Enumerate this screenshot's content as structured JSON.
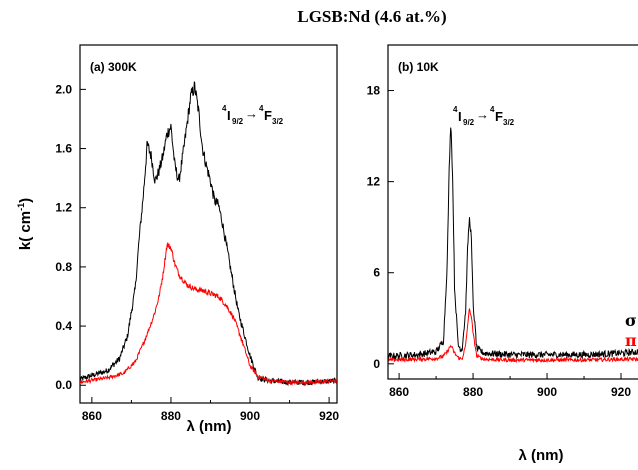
{
  "figure": {
    "title": "LGSB:Nd (4.6 at.%)"
  },
  "colors": {
    "sigma": "#000000",
    "pi": "#ff0000",
    "frame": "#000000"
  },
  "chart_data": [
    {
      "type": "line",
      "panel_label": "(a) 300K",
      "transition": {
        "lower": "4I9/2",
        "upper": "4F3/2"
      },
      "xlabel": "λ (nm)",
      "ylabel": "k( cm-1)",
      "xlim": [
        857,
        922
      ],
      "ylim": [
        -0.12,
        2.3
      ],
      "xticks": [
        860,
        880,
        900,
        920
      ],
      "xtick_labels": [
        "860",
        "880",
        "900",
        "920"
      ],
      "yticks": [
        0.0,
        0.4,
        0.8,
        1.2,
        1.6,
        2.0
      ],
      "ytick_labels": [
        "0.0",
        "0.4",
        "0.8",
        "1.2",
        "1.6",
        "2.0"
      ],
      "grid": false,
      "series": [
        {
          "color": "#000000",
          "x": [
            857,
            864,
            867,
            869,
            871,
            872,
            873,
            874,
            875,
            876,
            877,
            878,
            879,
            880,
            881,
            882,
            883,
            884,
            885,
            886,
            887,
            888,
            889,
            890,
            891,
            892,
            893,
            894,
            895,
            896,
            897,
            898,
            900,
            902,
            905,
            910,
            915,
            922
          ],
          "y": [
            0.04,
            0.1,
            0.18,
            0.33,
            0.66,
            1.0,
            1.28,
            1.63,
            1.55,
            1.38,
            1.45,
            1.55,
            1.7,
            1.75,
            1.48,
            1.38,
            1.55,
            1.75,
            1.95,
            2.02,
            1.85,
            1.6,
            1.48,
            1.38,
            1.25,
            1.22,
            1.1,
            0.95,
            0.8,
            0.65,
            0.5,
            0.4,
            0.2,
            0.05,
            0.03,
            0.02,
            0.02,
            0.03
          ]
        },
        {
          "color": "#ff0000",
          "x": [
            857,
            864,
            868,
            871,
            873,
            875,
            876,
            877,
            878,
            879,
            880,
            881,
            882,
            884,
            886,
            888,
            890,
            892,
            894,
            896,
            898,
            900,
            902,
            905,
            910,
            915,
            922
          ],
          "y": [
            0.02,
            0.05,
            0.08,
            0.16,
            0.28,
            0.42,
            0.5,
            0.6,
            0.75,
            0.95,
            0.93,
            0.82,
            0.75,
            0.68,
            0.65,
            0.64,
            0.62,
            0.6,
            0.54,
            0.45,
            0.3,
            0.13,
            0.06,
            0.03,
            0.02,
            0.02,
            0.03
          ]
        }
      ]
    },
    {
      "type": "line",
      "panel_label": "(b) 10K",
      "transition": {
        "lower": "4I9/2",
        "upper": "4F3/2"
      },
      "xlabel": "λ (nm)",
      "xlim": [
        857,
        930
      ],
      "ylim": [
        -1,
        21
      ],
      "xticks": [
        860,
        880,
        900,
        920
      ],
      "xtick_labels": [
        "860",
        "880",
        "900",
        "920"
      ],
      "yticks": [
        0,
        6,
        12,
        18
      ],
      "ytick_labels": [
        "0",
        "6",
        "12",
        "18"
      ],
      "grid": false,
      "legend": [
        "σ",
        "π"
      ],
      "series": [
        {
          "name": "σ",
          "color": "#000000",
          "x": [
            857,
            865,
            870,
            872,
            873,
            873.5,
            874,
            874.5,
            875,
            876,
            877,
            878,
            878.5,
            879,
            879.5,
            880,
            881,
            883,
            890,
            900,
            910,
            920,
            930
          ],
          "y": [
            0.5,
            0.6,
            0.8,
            1.5,
            6.5,
            12.5,
            16.1,
            12,
            5,
            1.2,
            0.9,
            3.5,
            7.5,
            9.6,
            8.5,
            4,
            1.0,
            0.7,
            0.6,
            0.6,
            0.6,
            0.7,
            0.9
          ]
        },
        {
          "name": "π",
          "color": "#ff0000",
          "x": [
            857,
            865,
            870,
            872,
            873,
            874,
            875,
            876,
            877,
            878,
            878.5,
            879,
            879.5,
            880,
            881,
            883,
            890,
            900,
            910,
            920,
            930
          ],
          "y": [
            0.25,
            0.3,
            0.35,
            0.5,
            0.8,
            1.2,
            0.7,
            0.4,
            0.3,
            1.2,
            2.5,
            3.6,
            3.2,
            2,
            0.5,
            0.3,
            0.25,
            0.25,
            0.25,
            0.3,
            0.3
          ]
        }
      ]
    }
  ]
}
